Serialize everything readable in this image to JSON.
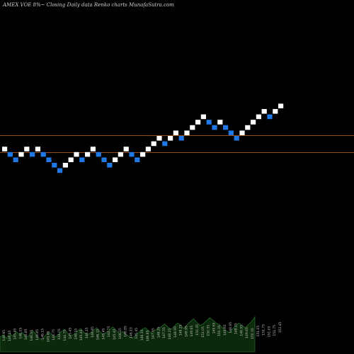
{
  "title": "AMEX  VOE 8%~  Closing Daily data  Renko  charts MunafaSutra.com",
  "colors": {
    "background": "#000000",
    "up_brick": "#ffffff",
    "down_brick": "#1e78e6",
    "reference_line": "#c8641e",
    "volume_fill": "#0b2a0b",
    "volume_edge": "#2e7d32"
  },
  "chart_data": {
    "type": "renko",
    "reference_lines": [
      148.6,
      146.4
    ],
    "bricks": [
      {
        "i": 0,
        "price": 146.85,
        "dir": "up"
      },
      {
        "i": 1,
        "price": 146.15,
        "dir": "down"
      },
      {
        "i": 2,
        "price": 145.45,
        "dir": "down"
      },
      {
        "i": 3,
        "price": 146.15,
        "dir": "up"
      },
      {
        "i": 4,
        "price": 146.85,
        "dir": "up"
      },
      {
        "i": 5,
        "price": 146.15,
        "dir": "down"
      },
      {
        "i": 6,
        "price": 146.85,
        "dir": "up"
      },
      {
        "i": 7,
        "price": 146.15,
        "dir": "down"
      },
      {
        "i": 8,
        "price": 145.45,
        "dir": "down"
      },
      {
        "i": 9,
        "price": 144.75,
        "dir": "down"
      },
      {
        "i": 10,
        "price": 144.05,
        "dir": "down"
      },
      {
        "i": 11,
        "price": 144.75,
        "dir": "up"
      },
      {
        "i": 12,
        "price": 145.45,
        "dir": "up"
      },
      {
        "i": 13,
        "price": 146.15,
        "dir": "up"
      },
      {
        "i": 14,
        "price": 145.45,
        "dir": "down"
      },
      {
        "i": 15,
        "price": 146.15,
        "dir": "up"
      },
      {
        "i": 16,
        "price": 146.85,
        "dir": "up"
      },
      {
        "i": 17,
        "price": 146.15,
        "dir": "down"
      },
      {
        "i": 18,
        "price": 145.45,
        "dir": "down"
      },
      {
        "i": 19,
        "price": 144.75,
        "dir": "down"
      },
      {
        "i": 20,
        "price": 145.45,
        "dir": "up"
      },
      {
        "i": 21,
        "price": 146.15,
        "dir": "up"
      },
      {
        "i": 22,
        "price": 146.85,
        "dir": "up"
      },
      {
        "i": 23,
        "price": 146.15,
        "dir": "down"
      },
      {
        "i": 24,
        "price": 145.45,
        "dir": "down"
      },
      {
        "i": 25,
        "price": 146.15,
        "dir": "up"
      },
      {
        "i": 26,
        "price": 146.85,
        "dir": "up"
      },
      {
        "i": 27,
        "price": 147.55,
        "dir": "up"
      },
      {
        "i": 28,
        "price": 148.25,
        "dir": "up"
      },
      {
        "i": 29,
        "price": 147.55,
        "dir": "down"
      },
      {
        "i": 30,
        "price": 148.25,
        "dir": "up"
      },
      {
        "i": 31,
        "price": 148.95,
        "dir": "up"
      },
      {
        "i": 32,
        "price": 148.25,
        "dir": "down"
      },
      {
        "i": 33,
        "price": 148.95,
        "dir": "up"
      },
      {
        "i": 34,
        "price": 149.65,
        "dir": "up"
      },
      {
        "i": 35,
        "price": 150.35,
        "dir": "up"
      },
      {
        "i": 36,
        "price": 151.05,
        "dir": "up"
      },
      {
        "i": 37,
        "price": 150.35,
        "dir": "down"
      },
      {
        "i": 38,
        "price": 149.65,
        "dir": "down"
      },
      {
        "i": 39,
        "price": 150.35,
        "dir": "up"
      },
      {
        "i": 40,
        "price": 149.65,
        "dir": "down"
      },
      {
        "i": 41,
        "price": 148.95,
        "dir": "down"
      },
      {
        "i": 42,
        "price": 148.25,
        "dir": "down"
      },
      {
        "i": 43,
        "price": 148.95,
        "dir": "up"
      },
      {
        "i": 44,
        "price": 149.65,
        "dir": "up"
      },
      {
        "i": 45,
        "price": 150.35,
        "dir": "up"
      },
      {
        "i": 46,
        "price": 151.05,
        "dir": "up"
      },
      {
        "i": 47,
        "price": 151.75,
        "dir": "up"
      },
      {
        "i": 48,
        "price": 151.05,
        "dir": "down"
      },
      {
        "i": 49,
        "price": 151.75,
        "dir": "up"
      },
      {
        "i": 50,
        "price": 152.45,
        "dir": "up"
      }
    ],
    "volume_profile": [
      38,
      44,
      35,
      48,
      40,
      52,
      45,
      50,
      38,
      42,
      55,
      47,
      36,
      30,
      42,
      50,
      46,
      38,
      44,
      52,
      58,
      48,
      40,
      46,
      54,
      60,
      50,
      44,
      48,
      56,
      62,
      52,
      45,
      50,
      58,
      64,
      55,
      48,
      52,
      46,
      40,
      35,
      42,
      50,
      58,
      62,
      55,
      48,
      56,
      60,
      65,
      72,
      64,
      58,
      66,
      74,
      68,
      60,
      70,
      78,
      85,
      76,
      68,
      72,
      80,
      88,
      82,
      74,
      70,
      62,
      55,
      50,
      58,
      66,
      74,
      68,
      62,
      70,
      78,
      90
    ],
    "bottom_labels": [
      "146.85",
      "146.15",
      "145.45",
      "146.15",
      "146.85",
      "146.15",
      "146.85",
      "146.15",
      "145.45",
      "144.75",
      "144.05",
      "144.75",
      "145.45",
      "146.15",
      "145.45",
      "146.15",
      "146.85",
      "146.15",
      "145.45",
      "144.75",
      "145.45",
      "146.15",
      "146.85",
      "146.15",
      "145.45",
      "146.15",
      "146.85",
      "147.55",
      "148.25",
      "147.55",
      "148.25",
      "148.95",
      "148.25",
      "148.95",
      "149.65",
      "150.35",
      "151.05",
      "150.35",
      "149.65",
      "150.35",
      "149.65",
      "148.95",
      "148.25",
      "148.95",
      "149.65",
      "150.35",
      "151.05",
      "151.75",
      "151.05",
      "151.75",
      "152.45"
    ]
  }
}
